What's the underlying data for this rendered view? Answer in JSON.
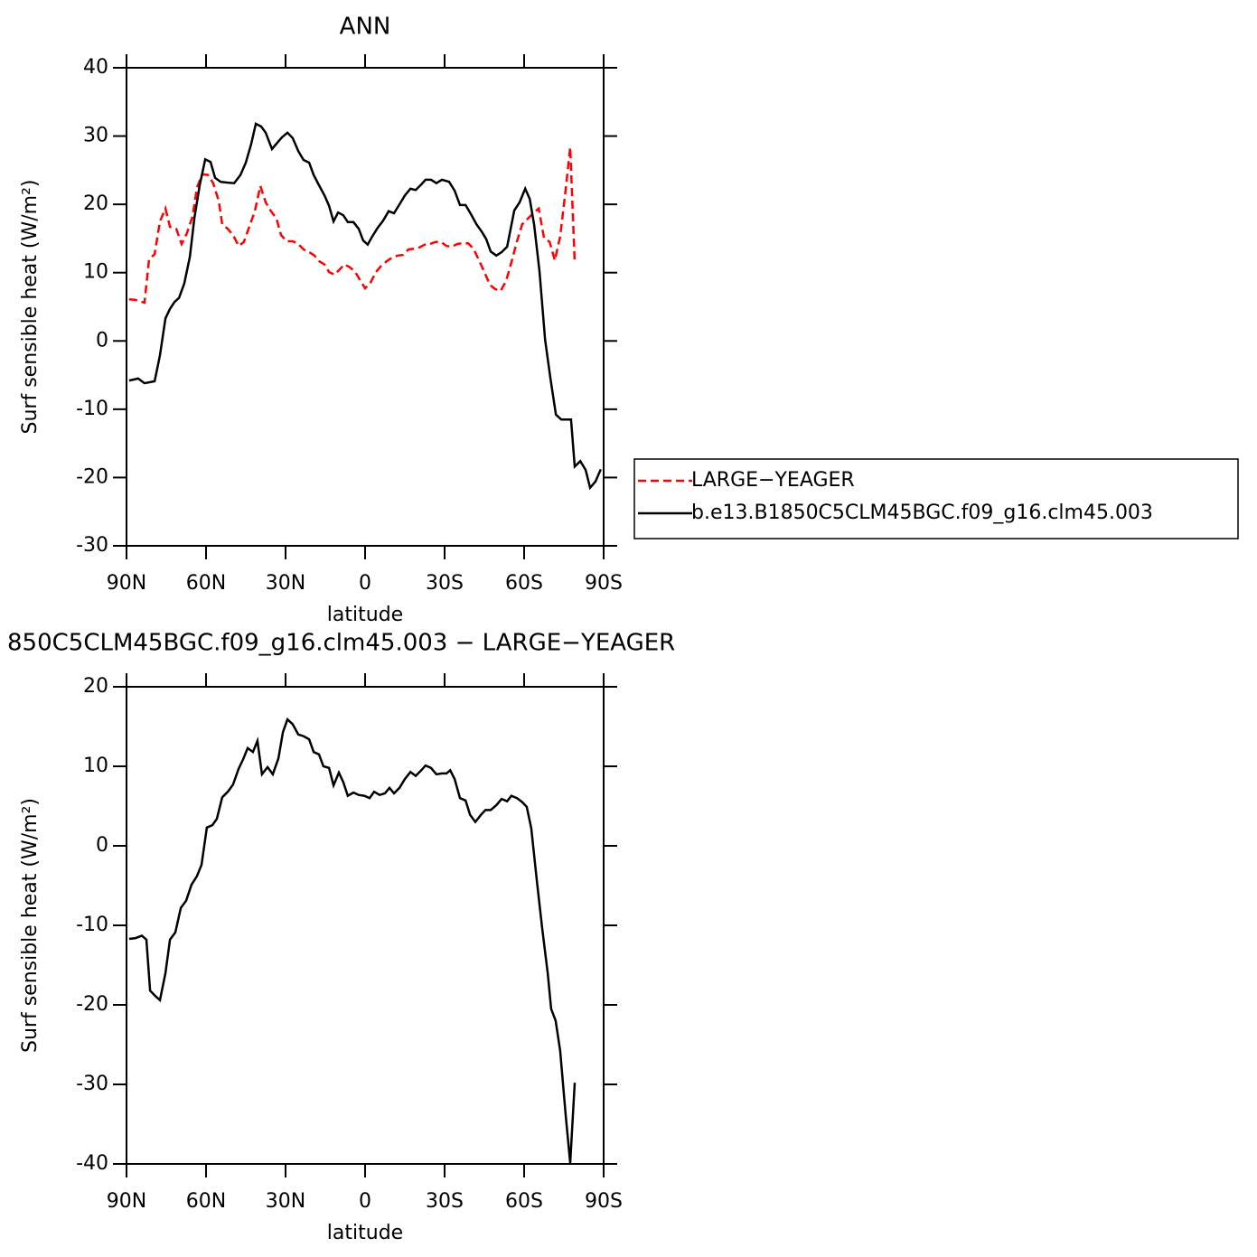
{
  "chart_data": [
    {
      "type": "line",
      "title": "ANN",
      "xlabel": "latitude",
      "ylabel": "Surf sensible heat (W/m²)",
      "xlim": [
        90,
        -90
      ],
      "ylim": [
        -30,
        40
      ],
      "xticks": [
        {
          "value": 90,
          "label": "90N"
        },
        {
          "value": 60,
          "label": "60N"
        },
        {
          "value": 30,
          "label": "30N"
        },
        0,
        {
          "value": -30,
          "label": "30S"
        },
        {
          "value": -60,
          "label": "60S"
        },
        {
          "value": -90,
          "label": "90S"
        }
      ],
      "yticks": [
        -30,
        -20,
        -10,
        0,
        10,
        20,
        30,
        40
      ],
      "legend": "right",
      "series": [
        {
          "name": "LARGE−YEAGER",
          "color": "#ff0000",
          "dash": true,
          "x": [
            89,
            86.6,
            83.2,
            81.5,
            79.4,
            77.4,
            75.3,
            73.6,
            71.2,
            69.2,
            67.2,
            65.1,
            63.4,
            61.4,
            59.3,
            57.3,
            55.2,
            53.9,
            51.8,
            49.8,
            47.7,
            45.7,
            43.6,
            41.6,
            39.5,
            37.5,
            35.5,
            33.4,
            31.7,
            29.6,
            27.3,
            25.2,
            23.2,
            21.1,
            19.1,
            17.4,
            15.3,
            13.6,
            11.6,
            9.8,
            7.8,
            5.8,
            3.7,
            1.7,
            0,
            -2.0,
            -4.1,
            -6.1,
            -8.2,
            -10.2,
            -12.3,
            -14.3,
            -16.4,
            -18.4,
            -20.5,
            -22.5,
            -24.5,
            -26.6,
            -28.6,
            -30.7,
            -32.7,
            -34.8,
            -36.8,
            -38.9,
            -40.9,
            -43.0,
            -45.0,
            -47.1,
            -49.1,
            -51.1,
            -53.2,
            -55.2,
            -57.3,
            -59.3,
            -61.4,
            -63.4,
            -65.5,
            -67.5,
            -69.6,
            -71.6,
            -73.6,
            -75.7,
            -77.4,
            -79.1
          ],
          "values": [
            6.1,
            6.0,
            5.6,
            11.9,
            12.7,
            17.5,
            19.4,
            16.7,
            16.4,
            14.2,
            15.8,
            18.2,
            22.5,
            24.4,
            24.3,
            23.1,
            20.5,
            17.1,
            16.4,
            15.5,
            13.9,
            14.5,
            16.8,
            19.0,
            22.7,
            20.3,
            19.0,
            17.9,
            15.5,
            14.6,
            14.6,
            14.2,
            13.4,
            13.0,
            12.5,
            11.7,
            11.2,
            10.1,
            9.7,
            10.4,
            11.2,
            10.8,
            10.1,
            8.8,
            7.7,
            8.5,
            10.1,
            11.0,
            11.7,
            12.2,
            12.5,
            12.6,
            13.4,
            13.5,
            13.7,
            14.1,
            14.2,
            14.5,
            14.5,
            13.9,
            13.8,
            14.2,
            14.3,
            14.3,
            13.5,
            11.8,
            10.1,
            8.2,
            7.6,
            7.3,
            8.8,
            11.5,
            14.6,
            17.1,
            17.9,
            18.7,
            19.4,
            15.1,
            14.5,
            11.8,
            15.3,
            22.3,
            28.4,
            11.4
          ]
        },
        {
          "name": "b.e13.B1850C5CLM45BGC.f09_g16.clm45.003",
          "color": "#000000",
          "dash": false,
          "x": [
            89,
            85.6,
            83.2,
            79.4,
            77.4,
            75.3,
            73.6,
            71.9,
            70.2,
            68.2,
            66.1,
            64.4,
            62.4,
            60.3,
            58.3,
            56.6,
            54.5,
            52.2,
            49.4,
            47.0,
            45.0,
            43.0,
            41.2,
            39.2,
            37.5,
            35.1,
            33.4,
            31.4,
            29.3,
            27.3,
            25.2,
            23.2,
            21.1,
            19.4,
            17.4,
            15.3,
            13.6,
            11.9,
            10.2,
            8.2,
            6.5,
            4.4,
            2.4,
            0.7,
            -1.0,
            -2.7,
            -4.8,
            -6.8,
            -8.9,
            -10.9,
            -13.0,
            -15.0,
            -17.1,
            -19.1,
            -21.2,
            -22.8,
            -24.9,
            -26.9,
            -29.0,
            -31.7,
            -33.8,
            -35.8,
            -37.9,
            -39.9,
            -42.0,
            -44.0,
            -45.7,
            -47.4,
            -49.5,
            -51.5,
            -53.6,
            -56.3,
            -58.3,
            -60.4,
            -62.1,
            -63.8,
            -65.8,
            -67.9,
            -69.9,
            -72.0,
            -74.0,
            -76.0,
            -77.7,
            -79.1,
            -81.2,
            -83.2,
            -84.9,
            -86.9,
            -88.9
          ],
          "values": [
            -5.8,
            -5.5,
            -6.2,
            -5.9,
            -2.1,
            3.3,
            4.7,
            5.7,
            6.3,
            8.4,
            12.3,
            18.0,
            22.8,
            26.6,
            26.2,
            23.9,
            23.3,
            23.2,
            23.1,
            24.3,
            26.1,
            28.8,
            31.8,
            31.4,
            30.5,
            28.1,
            28.9,
            29.8,
            30.5,
            29.7,
            27.8,
            26.5,
            26.1,
            24.3,
            22.8,
            21.3,
            19.8,
            17.5,
            18.8,
            18.4,
            17.4,
            17.4,
            16.4,
            14.7,
            14.1,
            15.3,
            16.6,
            17.6,
            19.0,
            18.7,
            20.0,
            21.3,
            22.3,
            22.1,
            22.9,
            23.6,
            23.6,
            23.1,
            23.6,
            23.3,
            22.0,
            19.9,
            19.9,
            18.6,
            17.1,
            16.0,
            14.9,
            13.1,
            12.5,
            13.0,
            13.8,
            19.1,
            20.3,
            22.3,
            20.8,
            17.0,
            10.2,
            0.2,
            -5.4,
            -10.8,
            -11.5,
            -11.5,
            -11.5,
            -18.4,
            -17.6,
            -18.9,
            -21.5,
            -20.6,
            -18.8
          ]
        }
      ]
    },
    {
      "type": "line",
      "title": "850C5CLM45BGC.f09_g16.clm45.003 − LARGE−YEAGER",
      "xlabel": "latitude",
      "ylabel": "Surf sensible heat (W/m²)",
      "xlim": [
        90,
        -90
      ],
      "ylim": [
        -40,
        20
      ],
      "xticks": [
        {
          "value": 90,
          "label": "90N"
        },
        {
          "value": 60,
          "label": "60N"
        },
        {
          "value": 30,
          "label": "30N"
        },
        0,
        {
          "value": -30,
          "label": "30S"
        },
        {
          "value": -60,
          "label": "60S"
        },
        {
          "value": -90,
          "label": "90S"
        }
      ],
      "yticks": [
        -40,
        -30,
        -20,
        -10,
        0,
        10,
        20
      ],
      "color": "#000000",
      "x": [
        89,
        86.6,
        84.2,
        82.5,
        81.1,
        79.1,
        77.4,
        75.3,
        73.6,
        71.6,
        69.5,
        67.5,
        65.5,
        63.4,
        61.7,
        59.7,
        57.6,
        55.9,
        53.9,
        51.8,
        49.8,
        47.7,
        46.0,
        44.3,
        42.3,
        40.6,
        38.9,
        36.8,
        34.8,
        32.7,
        31.0,
        29.3,
        27.3,
        25.2,
        23.2,
        21.1,
        19.4,
        17.4,
        15.7,
        13.6,
        11.9,
        9.9,
        8.2,
        6.5,
        4.4,
        2.4,
        0.3,
        -1.7,
        -3.4,
        -5.5,
        -7.5,
        -9.2,
        -10.9,
        -13.0,
        -15.0,
        -17.1,
        -19.1,
        -21.2,
        -22.8,
        -24.9,
        -26.9,
        -29.0,
        -30.7,
        -32.1,
        -33.8,
        -35.8,
        -37.9,
        -39.6,
        -41.6,
        -43.7,
        -45.4,
        -47.4,
        -49.5,
        -51.5,
        -53.6,
        -55.2,
        -57.3,
        -59.3,
        -61.0,
        -62.7,
        -64.8,
        -66.8,
        -68.9,
        -70.2,
        -71.9,
        -73.6,
        -75.7,
        -77.4,
        -79.1
      ],
      "values": [
        -11.7,
        -11.6,
        -11.3,
        -11.8,
        -18.2,
        -18.9,
        -19.4,
        -16.0,
        -11.8,
        -10.9,
        -7.8,
        -6.9,
        -4.9,
        -3.8,
        -2.4,
        2.3,
        2.6,
        3.4,
        6.1,
        6.8,
        7.7,
        9.7,
        10.9,
        12.3,
        11.8,
        13.2,
        9.0,
        9.9,
        9.0,
        11.0,
        14.3,
        15.9,
        15.3,
        14.0,
        13.8,
        13.4,
        11.8,
        11.5,
        10.0,
        9.8,
        7.6,
        9.2,
        8.0,
        6.3,
        6.7,
        6.4,
        6.3,
        6.0,
        6.8,
        6.4,
        6.6,
        7.3,
        6.6,
        7.3,
        8.4,
        9.3,
        8.8,
        9.5,
        10.1,
        9.8,
        9.0,
        9.1,
        9.1,
        9.5,
        8.4,
        6.0,
        5.7,
        3.9,
        3.0,
        3.9,
        4.5,
        4.5,
        5.1,
        5.9,
        5.6,
        6.3,
        6.0,
        5.5,
        4.9,
        2.2,
        -4.4,
        -10.3,
        -16.0,
        -20.5,
        -22.0,
        -25.8,
        -34.0,
        -39.9,
        -29.8
      ]
    }
  ]
}
